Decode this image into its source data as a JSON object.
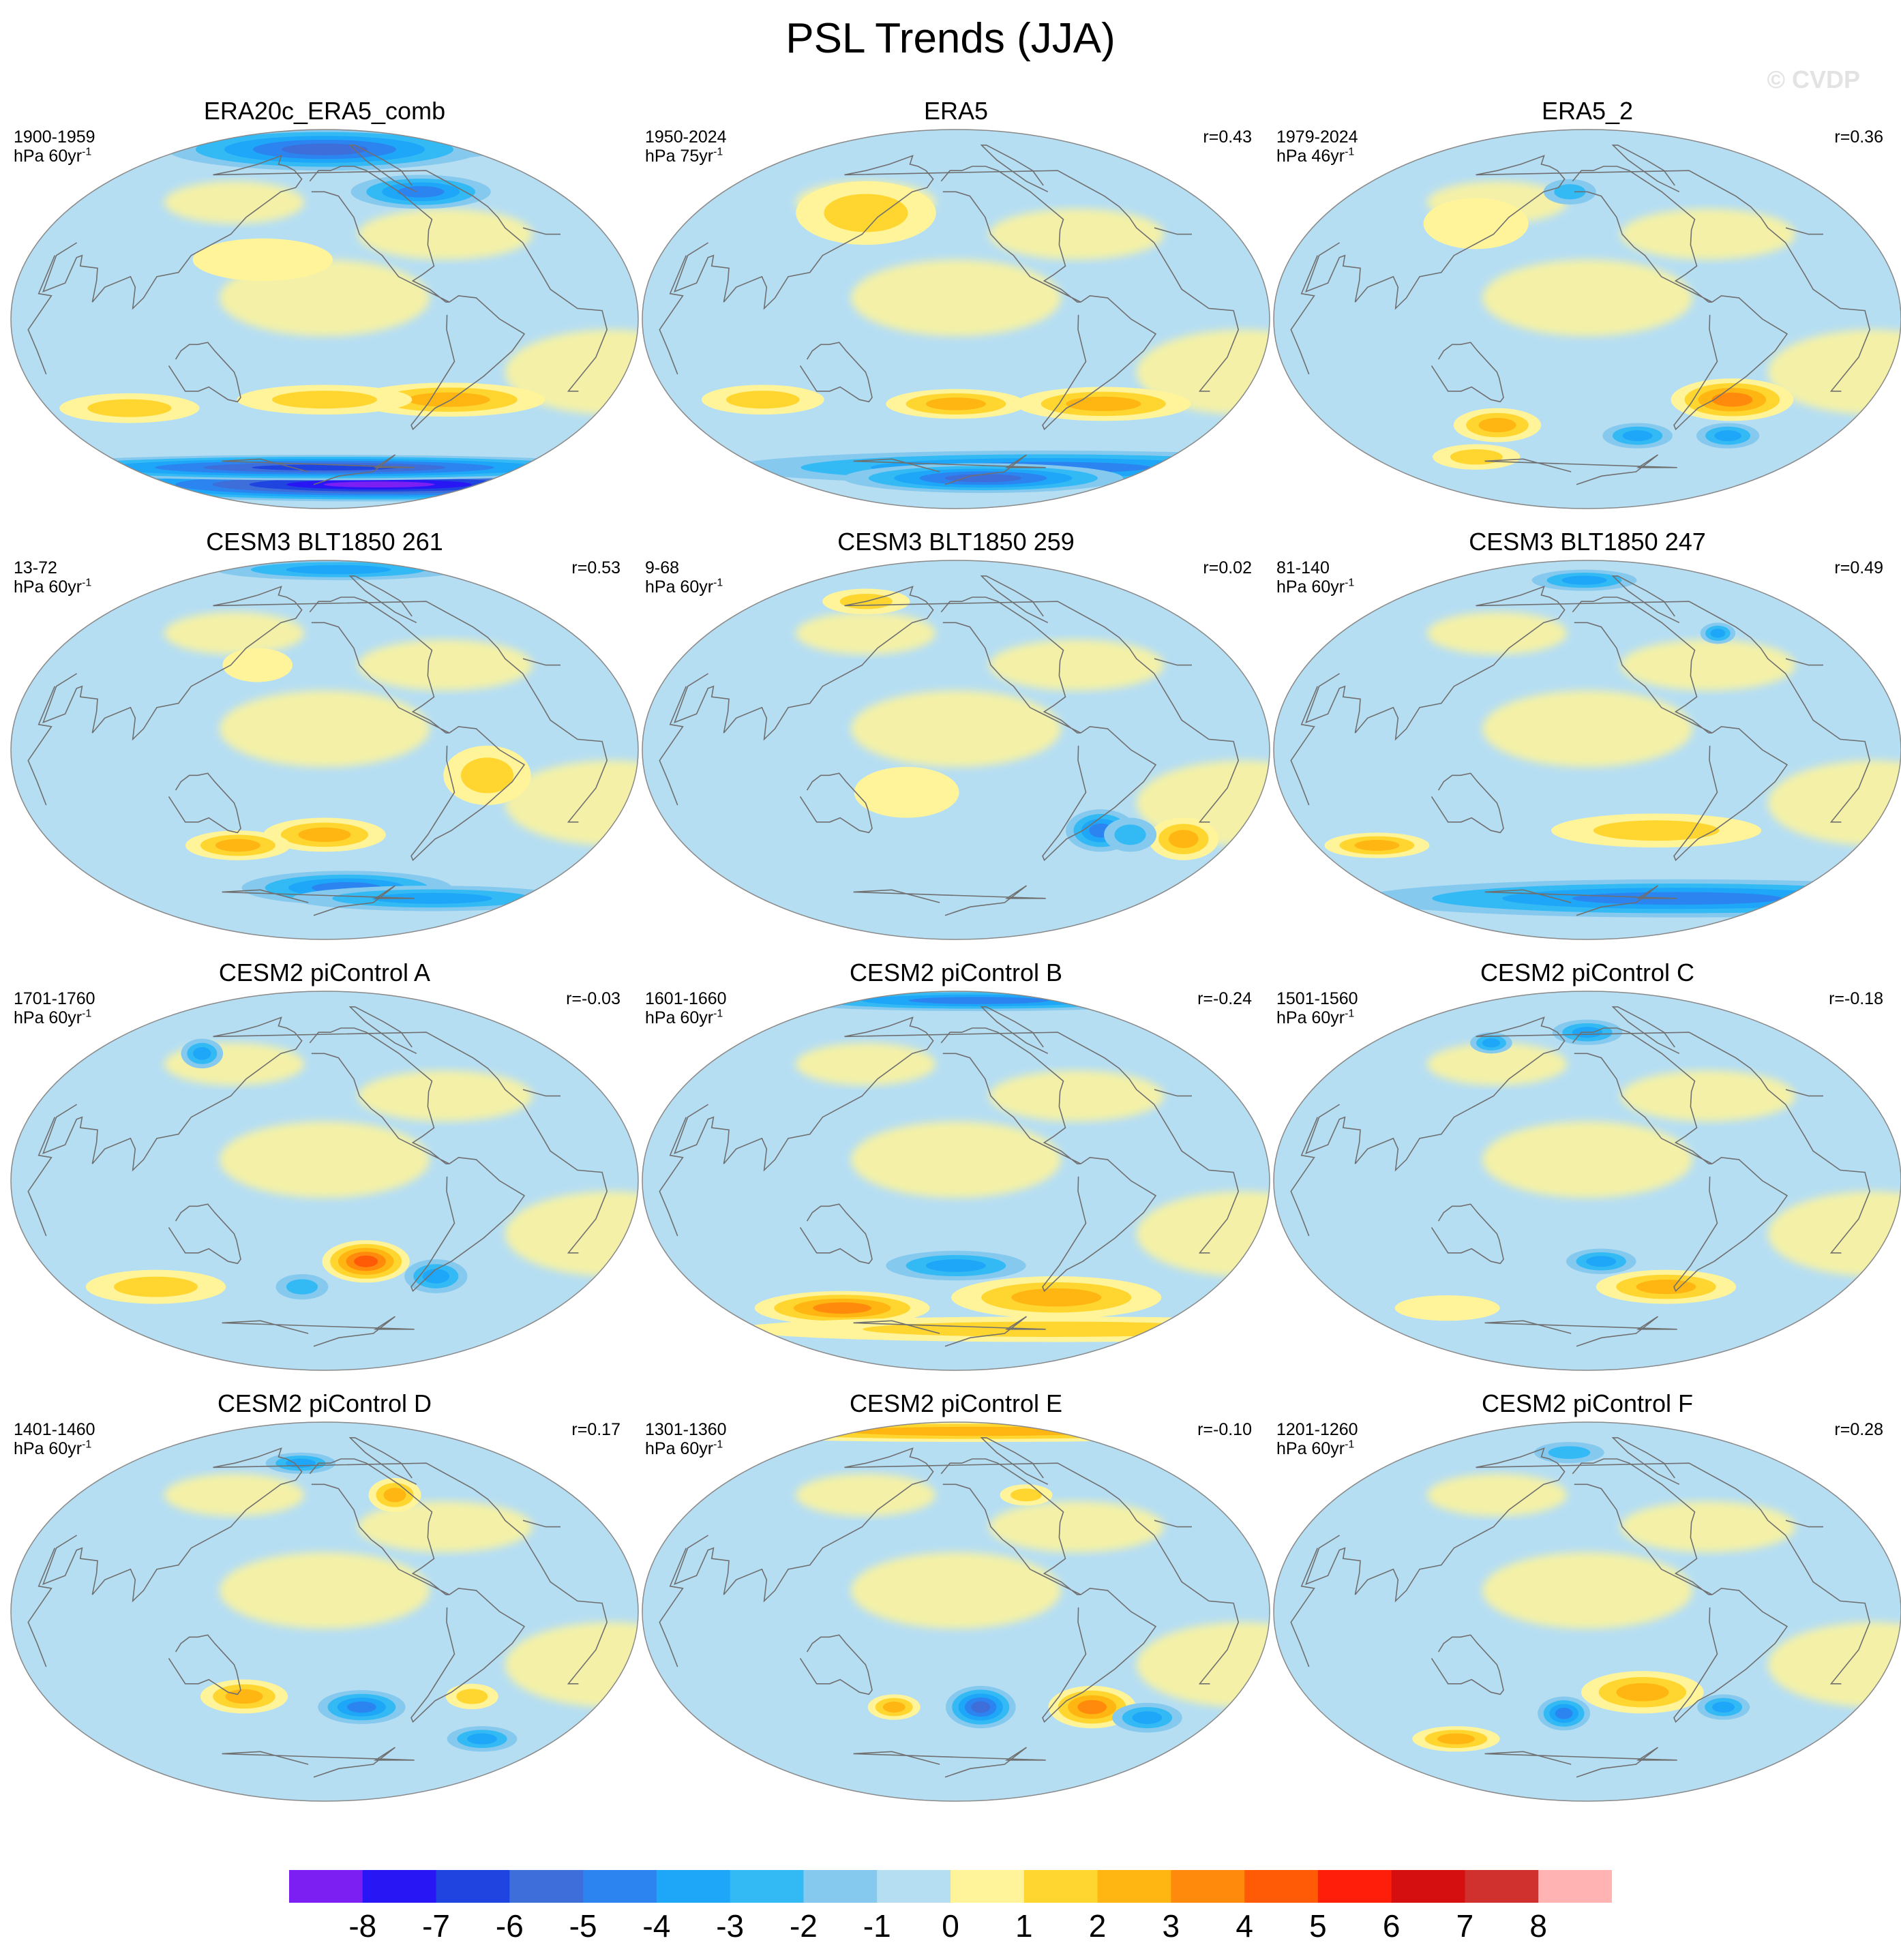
{
  "figure": {
    "title": "PSL Trends (JJA)",
    "watermark": "© CVDP"
  },
  "panels": [
    {
      "title": "ERA20c_ERA5_comb",
      "period": "1900-1959",
      "units": "hPa 60yr",
      "units_exp": "-1",
      "corr": "",
      "features": [
        {
          "lon": -60,
          "lat": -38,
          "rx": 55,
          "ry": 8,
          "level": 3
        },
        {
          "lon": -150,
          "lat": -38,
          "rx": 50,
          "ry": 7,
          "level": 2
        },
        {
          "lon": 60,
          "lat": -42,
          "rx": 40,
          "ry": 7,
          "level": 2
        },
        {
          "lon": 170,
          "lat": 28,
          "rx": 40,
          "ry": 10,
          "level": 1
        },
        {
          "lon": 0,
          "lat": 82,
          "rx": 90,
          "ry": 8,
          "level": -7
        },
        {
          "lon": -150,
          "lat": 80,
          "rx": 90,
          "ry": 10,
          "level": -5
        },
        {
          "lon": -40,
          "lat": 60,
          "rx": 40,
          "ry": 8,
          "level": -4
        },
        {
          "lon": 0,
          "lat": -78,
          "rx": 180,
          "ry": 8,
          "level": -8
        },
        {
          "lon": -150,
          "lat": -70,
          "rx": 180,
          "ry": 6,
          "level": -6
        }
      ]
    },
    {
      "title": "ERA5",
      "period": "1950-2024",
      "units": "hPa 75yr",
      "units_exp": "-1",
      "corr": "r=0.43",
      "features": [
        {
          "lon": -40,
          "lat": -40,
          "rx": 50,
          "ry": 8,
          "level": 3
        },
        {
          "lon": -150,
          "lat": -40,
          "rx": 40,
          "ry": 7,
          "level": 3
        },
        {
          "lon": 70,
          "lat": -38,
          "rx": 35,
          "ry": 7,
          "level": 2
        },
        {
          "lon": 130,
          "lat": 50,
          "rx": 40,
          "ry": 15,
          "level": 2
        },
        {
          "lon": 0,
          "lat": -70,
          "rx": 180,
          "ry": 8,
          "level": -4
        },
        {
          "lon": -90,
          "lat": -75,
          "rx": 80,
          "ry": 7,
          "level": -5
        }
      ]
    },
    {
      "title": "ERA5_2",
      "period": "1979-2024",
      "units": "hPa 46yr",
      "units_exp": "-1",
      "corr": "r=0.36",
      "features": [
        {
          "lon": -45,
          "lat": -38,
          "rx": 35,
          "ry": 10,
          "level": 4
        },
        {
          "lon": 130,
          "lat": -50,
          "rx": 25,
          "ry": 8,
          "level": 3
        },
        {
          "lon": -100,
          "lat": -55,
          "rx": 20,
          "ry": 6,
          "level": -3
        },
        {
          "lon": -10,
          "lat": -55,
          "rx": 18,
          "ry": 6,
          "level": -3
        },
        {
          "lon": 60,
          "lat": -65,
          "rx": 25,
          "ry": 6,
          "level": 2
        },
        {
          "lon": 120,
          "lat": 45,
          "rx": 30,
          "ry": 12,
          "level": 1
        },
        {
          "lon": -170,
          "lat": 60,
          "rx": 15,
          "ry": 6,
          "level": -2
        }
      ]
    },
    {
      "title": "CESM3 BLT1850 261",
      "period": "13-72",
      "units": "hPa 60yr",
      "units_exp": "-1",
      "corr": "r=0.53",
      "features": [
        {
          "lon": -150,
          "lat": -40,
          "rx": 35,
          "ry": 8,
          "level": 3
        },
        {
          "lon": 140,
          "lat": -45,
          "rx": 30,
          "ry": 7,
          "level": 3
        },
        {
          "lon": -55,
          "lat": -12,
          "rx": 25,
          "ry": 14,
          "level": 2
        },
        {
          "lon": 160,
          "lat": 40,
          "rx": 20,
          "ry": 8,
          "level": 1
        },
        {
          "lon": -120,
          "lat": -65,
          "rx": 60,
          "ry": 8,
          "level": -4
        },
        {
          "lon": 30,
          "lat": -70,
          "rx": 80,
          "ry": 6,
          "level": -3
        },
        {
          "lon": -60,
          "lat": 85,
          "rx": 70,
          "ry": 5,
          "level": -3
        }
      ]
    },
    {
      "title": "CESM3 BLT1850 259",
      "period": "9-68",
      "units": "hPa 60yr",
      "units_exp": "-1",
      "corr": "r=0.02",
      "features": [
        {
          "lon": -45,
          "lat": -38,
          "rx": 20,
          "ry": 10,
          "level": -4
        },
        {
          "lon": 25,
          "lat": -42,
          "rx": 20,
          "ry": 10,
          "level": 3
        },
        {
          "lon": -20,
          "lat": -40,
          "rx": 15,
          "ry": 8,
          "level": -2
        },
        {
          "lon": 180,
          "lat": -20,
          "rx": 30,
          "ry": 12,
          "level": 1
        },
        {
          "lon": 60,
          "lat": 70,
          "rx": 25,
          "ry": 6,
          "level": 2
        }
      ]
    },
    {
      "title": "CESM3 BLT1850 247",
      "period": "81-140",
      "units": "hPa 60yr",
      "units_exp": "-1",
      "corr": "r=0.49",
      "features": [
        {
          "lon": -100,
          "lat": -38,
          "rx": 60,
          "ry": 8,
          "level": 2
        },
        {
          "lon": 40,
          "lat": -45,
          "rx": 30,
          "ry": 6,
          "level": 3
        },
        {
          "lon": 0,
          "lat": -70,
          "rx": 180,
          "ry": 9,
          "level": -4
        },
        {
          "lon": -20,
          "lat": 55,
          "rx": 10,
          "ry": 5,
          "level": -3
        },
        {
          "lon": -160,
          "lat": 80,
          "rx": 30,
          "ry": 5,
          "level": -3
        }
      ]
    },
    {
      "title": "CESM2 piControl A",
      "period": "1701-1760",
      "units": "hPa 60yr",
      "units_exp": "-1",
      "corr": "r=-0.03",
      "features": [
        {
          "lon": -120,
          "lat": -38,
          "rx": 25,
          "ry": 10,
          "level": 5
        },
        {
          "lon": 60,
          "lat": -50,
          "rx": 40,
          "ry": 8,
          "level": 2
        },
        {
          "lon": -60,
          "lat": -45,
          "rx": 18,
          "ry": 8,
          "level": -3
        },
        {
          "lon": -170,
          "lat": -50,
          "rx": 15,
          "ry": 6,
          "level": -2
        },
        {
          "lon": 70,
          "lat": 60,
          "rx": 12,
          "ry": 7,
          "level": -3
        }
      ]
    },
    {
      "title": "CESM2 piControl B",
      "period": "1601-1660",
      "units": "hPa 60yr",
      "units_exp": "-1",
      "corr": "r=-0.24",
      "features": [
        {
          "lon": -50,
          "lat": -55,
          "rx": 60,
          "ry": 10,
          "level": 3
        },
        {
          "lon": 80,
          "lat": -60,
          "rx": 50,
          "ry": 8,
          "level": 4
        },
        {
          "lon": -150,
          "lat": -40,
          "rx": 40,
          "ry": 7,
          "level": -3
        },
        {
          "lon": 10,
          "lat": -70,
          "rx": 180,
          "ry": 6,
          "level": 2
        },
        {
          "lon": 0,
          "lat": 85,
          "rx": 120,
          "ry": 5,
          "level": -4
        }
      ]
    },
    {
      "title": "CESM2 piControl C",
      "period": "1501-1560",
      "units": "hPa 60yr",
      "units_exp": "-1",
      "corr": "r=-0.18",
      "features": [
        {
          "lon": -80,
          "lat": -50,
          "rx": 40,
          "ry": 8,
          "level": 3
        },
        {
          "lon": -140,
          "lat": -38,
          "rx": 20,
          "ry": 6,
          "level": -3
        },
        {
          "lon": 80,
          "lat": 65,
          "rx": 12,
          "ry": 5,
          "level": -3
        },
        {
          "lon": -150,
          "lat": 70,
          "rx": 20,
          "ry": 6,
          "level": -3
        },
        {
          "lon": 50,
          "lat": -60,
          "rx": 30,
          "ry": 6,
          "level": 1
        }
      ]
    },
    {
      "title": "CESM2 piControl D",
      "period": "1401-1460",
      "units": "hPa 60yr",
      "units_exp": "-1",
      "corr": "r=0.17",
      "features": [
        {
          "lon": -120,
          "lat": -45,
          "rx": 25,
          "ry": 8,
          "level": -4
        },
        {
          "lon": 150,
          "lat": -40,
          "rx": 25,
          "ry": 8,
          "level": 3
        },
        {
          "lon": -40,
          "lat": -40,
          "rx": 15,
          "ry": 6,
          "level": 2
        },
        {
          "lon": 30,
          "lat": -60,
          "rx": 20,
          "ry": 6,
          "level": -3
        },
        {
          "lon": -80,
          "lat": 55,
          "rx": 15,
          "ry": 8,
          "level": 3
        },
        {
          "lon": 170,
          "lat": 70,
          "rx": 20,
          "ry": 5,
          "level": -3
        }
      ]
    },
    {
      "title": "CESM2 piControl E",
      "period": "1301-1360",
      "units": "hPa 60yr",
      "units_exp": "-1",
      "corr": "r=-0.10",
      "features": [
        {
          "lon": -130,
          "lat": -45,
          "rx": 20,
          "ry": 10,
          "level": -5
        },
        {
          "lon": -40,
          "lat": -45,
          "rx": 25,
          "ry": 10,
          "level": 4
        },
        {
          "lon": 20,
          "lat": -50,
          "rx": 20,
          "ry": 7,
          "level": -3
        },
        {
          "lon": 160,
          "lat": -45,
          "rx": 15,
          "ry": 6,
          "level": 3
        },
        {
          "lon": 0,
          "lat": 85,
          "rx": 180,
          "ry": 5,
          "level": 3
        },
        {
          "lon": -80,
          "lat": 55,
          "rx": 15,
          "ry": 5,
          "level": 2
        }
      ]
    },
    {
      "title": "CESM2 piControl F",
      "period": "1201-1260",
      "units": "hPa 60yr",
      "units_exp": "-1",
      "corr": "r=0.28",
      "features": [
        {
          "lon": -110,
          "lat": -38,
          "rx": 35,
          "ry": 10,
          "level": 3
        },
        {
          "lon": -40,
          "lat": -45,
          "rx": 15,
          "ry": 6,
          "level": -3
        },
        {
          "lon": -170,
          "lat": -48,
          "rx": 15,
          "ry": 8,
          "level": -4
        },
        {
          "lon": 60,
          "lat": -60,
          "rx": 25,
          "ry": 6,
          "level": 3
        },
        {
          "lon": 170,
          "lat": 75,
          "rx": 20,
          "ry": 5,
          "level": -2
        }
      ]
    }
  ],
  "colorbar": {
    "labels": [
      "-8",
      "-7",
      "-6",
      "-5",
      "-4",
      "-3",
      "-2",
      "-1",
      "0",
      "1",
      "2",
      "3",
      "4",
      "5",
      "6",
      "7",
      "8"
    ],
    "colors": [
      "#7b1ff2",
      "#2916f4",
      "#1f44e0",
      "#3d6ed9",
      "#2b84ef",
      "#1ea6f8",
      "#33baf5",
      "#86c9ee",
      "#b6def3",
      "#fff49a",
      "#ffd630",
      "#ffb612",
      "#ff8a0b",
      "#ff5b07",
      "#ff1e0a",
      "#d50f0f",
      "#d0312f",
      "#ffb3b3"
    ]
  }
}
